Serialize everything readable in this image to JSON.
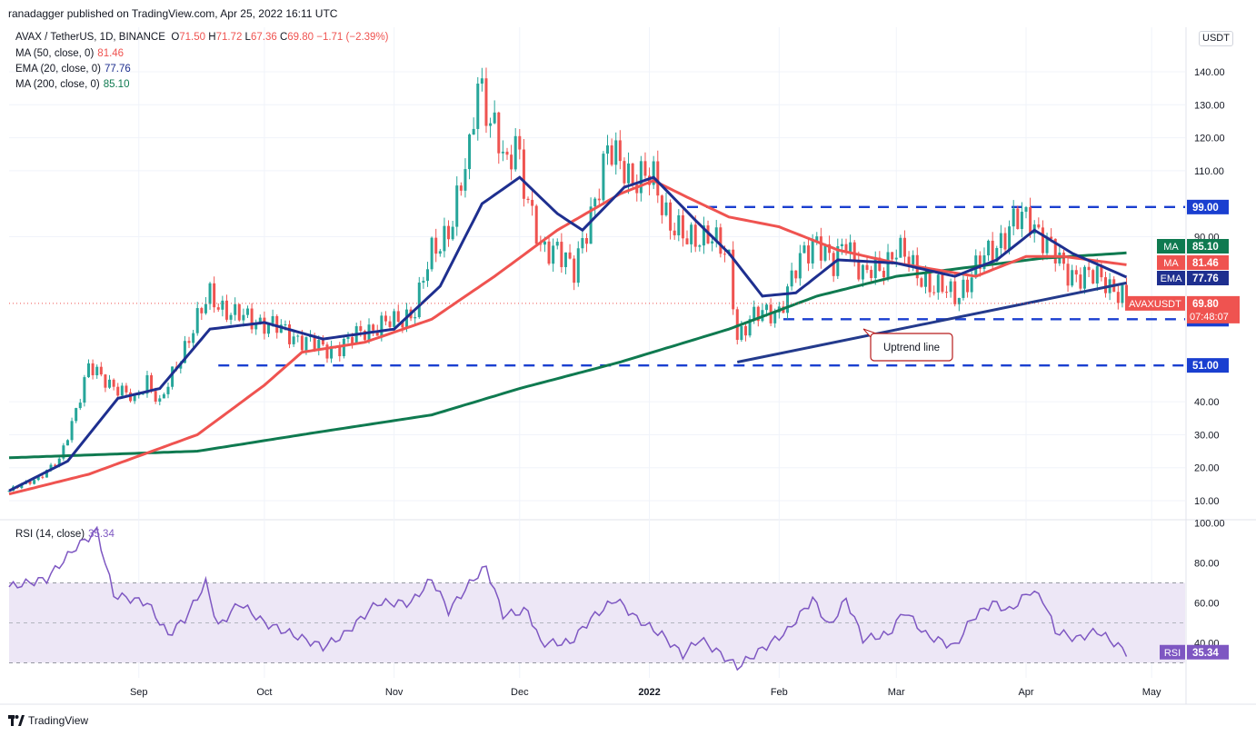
{
  "header": {
    "published": "ranadagger published on TradingView.com, Apr 25, 2022 16:11 UTC",
    "symbol": "AVAX / TetherUS, 1D, BINANCE",
    "ohlc": {
      "o_label": "O",
      "o": "71.50",
      "h_label": "H",
      "h": "71.72",
      "l_label": "L",
      "l": "67.36",
      "c_label": "C",
      "c": "69.80",
      "change": "−1.71 (−2.39%)"
    },
    "indicators": [
      {
        "label": "MA (50, close, 0)",
        "value": "81.46",
        "color": "#ef5350"
      },
      {
        "label": "EMA (20, close, 0)",
        "value": "77.76",
        "color": "#1e2f8f"
      },
      {
        "label": "MA (200, close, 0)",
        "value": "85.10",
        "color": "#0f7a50"
      }
    ],
    "currency": "USDT"
  },
  "footer": {
    "brand": "TradingView"
  },
  "colors": {
    "up": "#26a69a",
    "down": "#ef5350",
    "ma50": "#ef5350",
    "ema20": "#1e2f8f",
    "ma200": "#0f7a50",
    "level": "#1a3fd0",
    "trend": "#233a8c",
    "rsi": "#7e57c2",
    "rsi_band": "#ede7f6",
    "grid": "#f0f3fa",
    "axis_text": "#131722"
  },
  "chart_data": [
    {
      "type": "candlestick",
      "title": "AVAX / TetherUS, 1D, BINANCE",
      "x_ticks": [
        "Sep",
        "Oct",
        "Nov",
        "Dec",
        "2022",
        "Feb",
        "Mar",
        "Apr",
        "May"
      ],
      "y_ticks": [
        "10.00",
        "20.00",
        "30.00",
        "40.00",
        "51.00",
        "65.00",
        "90.00",
        "99.00",
        "110.00",
        "120.00",
        "130.00",
        "140.00"
      ],
      "ylim": [
        5,
        152
      ],
      "x_range": [
        "2021-08-01",
        "2022-05-09"
      ],
      "last_price": {
        "symbol": "AVAXUSDT",
        "value": "69.80",
        "countdown": "07:48:07"
      },
      "series_tags": [
        {
          "name": "MA",
          "value": "85.10",
          "color": "#0f7a50"
        },
        {
          "name": "MA",
          "value": "81.46",
          "color": "#ef5350"
        },
        {
          "name": "EMA",
          "value": "77.76",
          "color": "#1e2f8f"
        }
      ],
      "price_anchors": [
        [
          "2021-08-01",
          13
        ],
        [
          "2021-08-08",
          17
        ],
        [
          "2021-08-13",
          22
        ],
        [
          "2021-08-17",
          38
        ],
        [
          "2021-08-20",
          50
        ],
        [
          "2021-08-25",
          46
        ],
        [
          "2021-08-31",
          40
        ],
        [
          "2021-09-03",
          47
        ],
        [
          "2021-09-06",
          39
        ],
        [
          "2021-09-13",
          60
        ],
        [
          "2021-09-18",
          72
        ],
        [
          "2021-09-24",
          66
        ],
        [
          "2021-10-01",
          64
        ],
        [
          "2021-10-08",
          60
        ],
        [
          "2021-10-15",
          56
        ],
        [
          "2021-10-20",
          57
        ],
        [
          "2021-10-25",
          62
        ],
        [
          "2021-11-01",
          64
        ],
        [
          "2021-11-06",
          68
        ],
        [
          "2021-11-10",
          85
        ],
        [
          "2021-11-15",
          95
        ],
        [
          "2021-11-19",
          115
        ],
        [
          "2021-11-21",
          140
        ],
        [
          "2021-11-24",
          125
        ],
        [
          "2021-11-28",
          110
        ],
        [
          "2021-11-30",
          122
        ],
        [
          "2021-12-03",
          100
        ],
        [
          "2021-12-06",
          85
        ],
        [
          "2021-12-10",
          88
        ],
        [
          "2021-12-14",
          78
        ],
        [
          "2021-12-18",
          98
        ],
        [
          "2021-12-22",
          115
        ],
        [
          "2021-12-26",
          112
        ],
        [
          "2021-12-28",
          108
        ],
        [
          "2022-01-02",
          107
        ],
        [
          "2022-01-06",
          95
        ],
        [
          "2022-01-10",
          88
        ],
        [
          "2022-01-15",
          92
        ],
        [
          "2022-01-20",
          82
        ],
        [
          "2022-01-22",
          60
        ],
        [
          "2022-01-25",
          65
        ],
        [
          "2022-02-01",
          68
        ],
        [
          "2022-02-07",
          85
        ],
        [
          "2022-02-10",
          90
        ],
        [
          "2022-02-14",
          80
        ],
        [
          "2022-02-17",
          90
        ],
        [
          "2022-02-21",
          78
        ],
        [
          "2022-02-25",
          80
        ],
        [
          "2022-03-01",
          87
        ],
        [
          "2022-03-05",
          80
        ],
        [
          "2022-03-10",
          75
        ],
        [
          "2022-03-15",
          72
        ],
        [
          "2022-03-20",
          80
        ],
        [
          "2022-03-25",
          88
        ],
        [
          "2022-03-29",
          94
        ],
        [
          "2022-04-02",
          96
        ],
        [
          "2022-04-05",
          90
        ],
        [
          "2022-04-10",
          80
        ],
        [
          "2022-04-15",
          78
        ],
        [
          "2022-04-20",
          77
        ],
        [
          "2022-04-24",
          72
        ],
        [
          "2022-04-25",
          69.8
        ]
      ],
      "ma50_anchors": [
        [
          "2021-08-01",
          12
        ],
        [
          "2021-08-20",
          18
        ],
        [
          "2021-09-15",
          30
        ],
        [
          "2021-10-01",
          45
        ],
        [
          "2021-10-10",
          55
        ],
        [
          "2021-10-25",
          58
        ],
        [
          "2021-11-10",
          65
        ],
        [
          "2021-11-25",
          78
        ],
        [
          "2021-12-10",
          92
        ],
        [
          "2021-12-25",
          103
        ],
        [
          "2022-01-02",
          107
        ],
        [
          "2022-01-10",
          102
        ],
        [
          "2022-01-20",
          96
        ],
        [
          "2022-02-01",
          93
        ],
        [
          "2022-02-15",
          86
        ],
        [
          "2022-03-01",
          82
        ],
        [
          "2022-03-20",
          78
        ],
        [
          "2022-04-01",
          84
        ],
        [
          "2022-04-10",
          84
        ],
        [
          "2022-04-25",
          81.5
        ]
      ],
      "ema20_anchors": [
        [
          "2021-08-01",
          13
        ],
        [
          "2021-08-15",
          22
        ],
        [
          "2021-08-27",
          41
        ],
        [
          "2021-09-06",
          44
        ],
        [
          "2021-09-18",
          62
        ],
        [
          "2021-10-01",
          64
        ],
        [
          "2021-10-15",
          59
        ],
        [
          "2021-11-01",
          62
        ],
        [
          "2021-11-12",
          75
        ],
        [
          "2021-11-22",
          100
        ],
        [
          "2021-12-01",
          108
        ],
        [
          "2021-12-10",
          97
        ],
        [
          "2021-12-16",
          92
        ],
        [
          "2021-12-26",
          105
        ],
        [
          "2022-01-02",
          108
        ],
        [
          "2022-01-12",
          95
        ],
        [
          "2022-01-20",
          85
        ],
        [
          "2022-01-28",
          72
        ],
        [
          "2022-02-05",
          73
        ],
        [
          "2022-02-15",
          83
        ],
        [
          "2022-03-01",
          82
        ],
        [
          "2022-03-15",
          78
        ],
        [
          "2022-03-25",
          83
        ],
        [
          "2022-04-03",
          92
        ],
        [
          "2022-04-12",
          85
        ],
        [
          "2022-04-25",
          77.76
        ]
      ],
      "ma200_anchors": [
        [
          "2021-08-01",
          23
        ],
        [
          "2021-09-15",
          25
        ],
        [
          "2021-10-15",
          31
        ],
        [
          "2021-11-10",
          36
        ],
        [
          "2021-12-01",
          44
        ],
        [
          "2021-12-25",
          52
        ],
        [
          "2022-01-20",
          62
        ],
        [
          "2022-02-10",
          72
        ],
        [
          "2022-03-01",
          78
        ],
        [
          "2022-03-20",
          81
        ],
        [
          "2022-04-05",
          83.5
        ],
        [
          "2022-04-25",
          85.1
        ]
      ],
      "levels": [
        {
          "label": "99.00",
          "value": 99,
          "from": "2022-01-10"
        },
        {
          "label": "65.00",
          "value": 65,
          "from": "2022-02-02"
        },
        {
          "label": "51.00",
          "value": 51,
          "from": "2021-09-20"
        }
      ],
      "uptrend_line": {
        "from": [
          "2022-01-22",
          52
        ],
        "to": [
          "2022-04-25",
          76
        ]
      },
      "annotation": "Uptrend line"
    },
    {
      "type": "line",
      "title": "RSI (14, close)",
      "value": "35.34",
      "y_ticks": [
        "40.00",
        "60.00",
        "80.00",
        "100.00"
      ],
      "ylim": [
        0,
        100
      ],
      "band": [
        30,
        70
      ],
      "midline": 50,
      "anchors": [
        [
          "2021-08-01",
          68
        ],
        [
          "2021-08-10",
          72
        ],
        [
          "2021-08-17",
          88
        ],
        [
          "2021-08-22",
          96
        ],
        [
          "2021-08-26",
          64
        ],
        [
          "2021-09-03",
          60
        ],
        [
          "2021-09-08",
          44
        ],
        [
          "2021-09-12",
          52
        ],
        [
          "2021-09-17",
          70
        ],
        [
          "2021-09-20",
          48
        ],
        [
          "2021-09-25",
          60
        ],
        [
          "2021-10-01",
          50
        ],
        [
          "2021-10-08",
          44
        ],
        [
          "2021-10-15",
          38
        ],
        [
          "2021-10-20",
          44
        ],
        [
          "2021-10-28",
          60
        ],
        [
          "2021-11-05",
          60
        ],
        [
          "2021-11-10",
          72
        ],
        [
          "2021-11-14",
          56
        ],
        [
          "2021-11-20",
          72
        ],
        [
          "2021-11-23",
          78
        ],
        [
          "2021-11-27",
          54
        ],
        [
          "2021-12-03",
          56
        ],
        [
          "2021-12-06",
          40
        ],
        [
          "2021-12-13",
          40
        ],
        [
          "2021-12-18",
          52
        ],
        [
          "2021-12-24",
          62
        ],
        [
          "2021-12-29",
          52
        ],
        [
          "2022-01-04",
          44
        ],
        [
          "2022-01-09",
          34
        ],
        [
          "2022-01-13",
          42
        ],
        [
          "2022-01-17",
          36
        ],
        [
          "2022-01-22",
          28
        ],
        [
          "2022-01-26",
          34
        ],
        [
          "2022-02-03",
          46
        ],
        [
          "2022-02-09",
          62
        ],
        [
          "2022-02-13",
          48
        ],
        [
          "2022-02-17",
          62
        ],
        [
          "2022-02-21",
          42
        ],
        [
          "2022-02-27",
          44
        ],
        [
          "2022-03-03",
          56
        ],
        [
          "2022-03-08",
          44
        ],
        [
          "2022-03-15",
          38
        ],
        [
          "2022-03-19",
          52
        ],
        [
          "2022-03-24",
          60
        ],
        [
          "2022-03-28",
          56
        ],
        [
          "2022-04-02",
          66
        ],
        [
          "2022-04-05",
          62
        ],
        [
          "2022-04-08",
          46
        ],
        [
          "2022-04-13",
          42
        ],
        [
          "2022-04-18",
          46
        ],
        [
          "2022-04-22",
          40
        ],
        [
          "2022-04-25",
          35.34
        ]
      ]
    }
  ]
}
